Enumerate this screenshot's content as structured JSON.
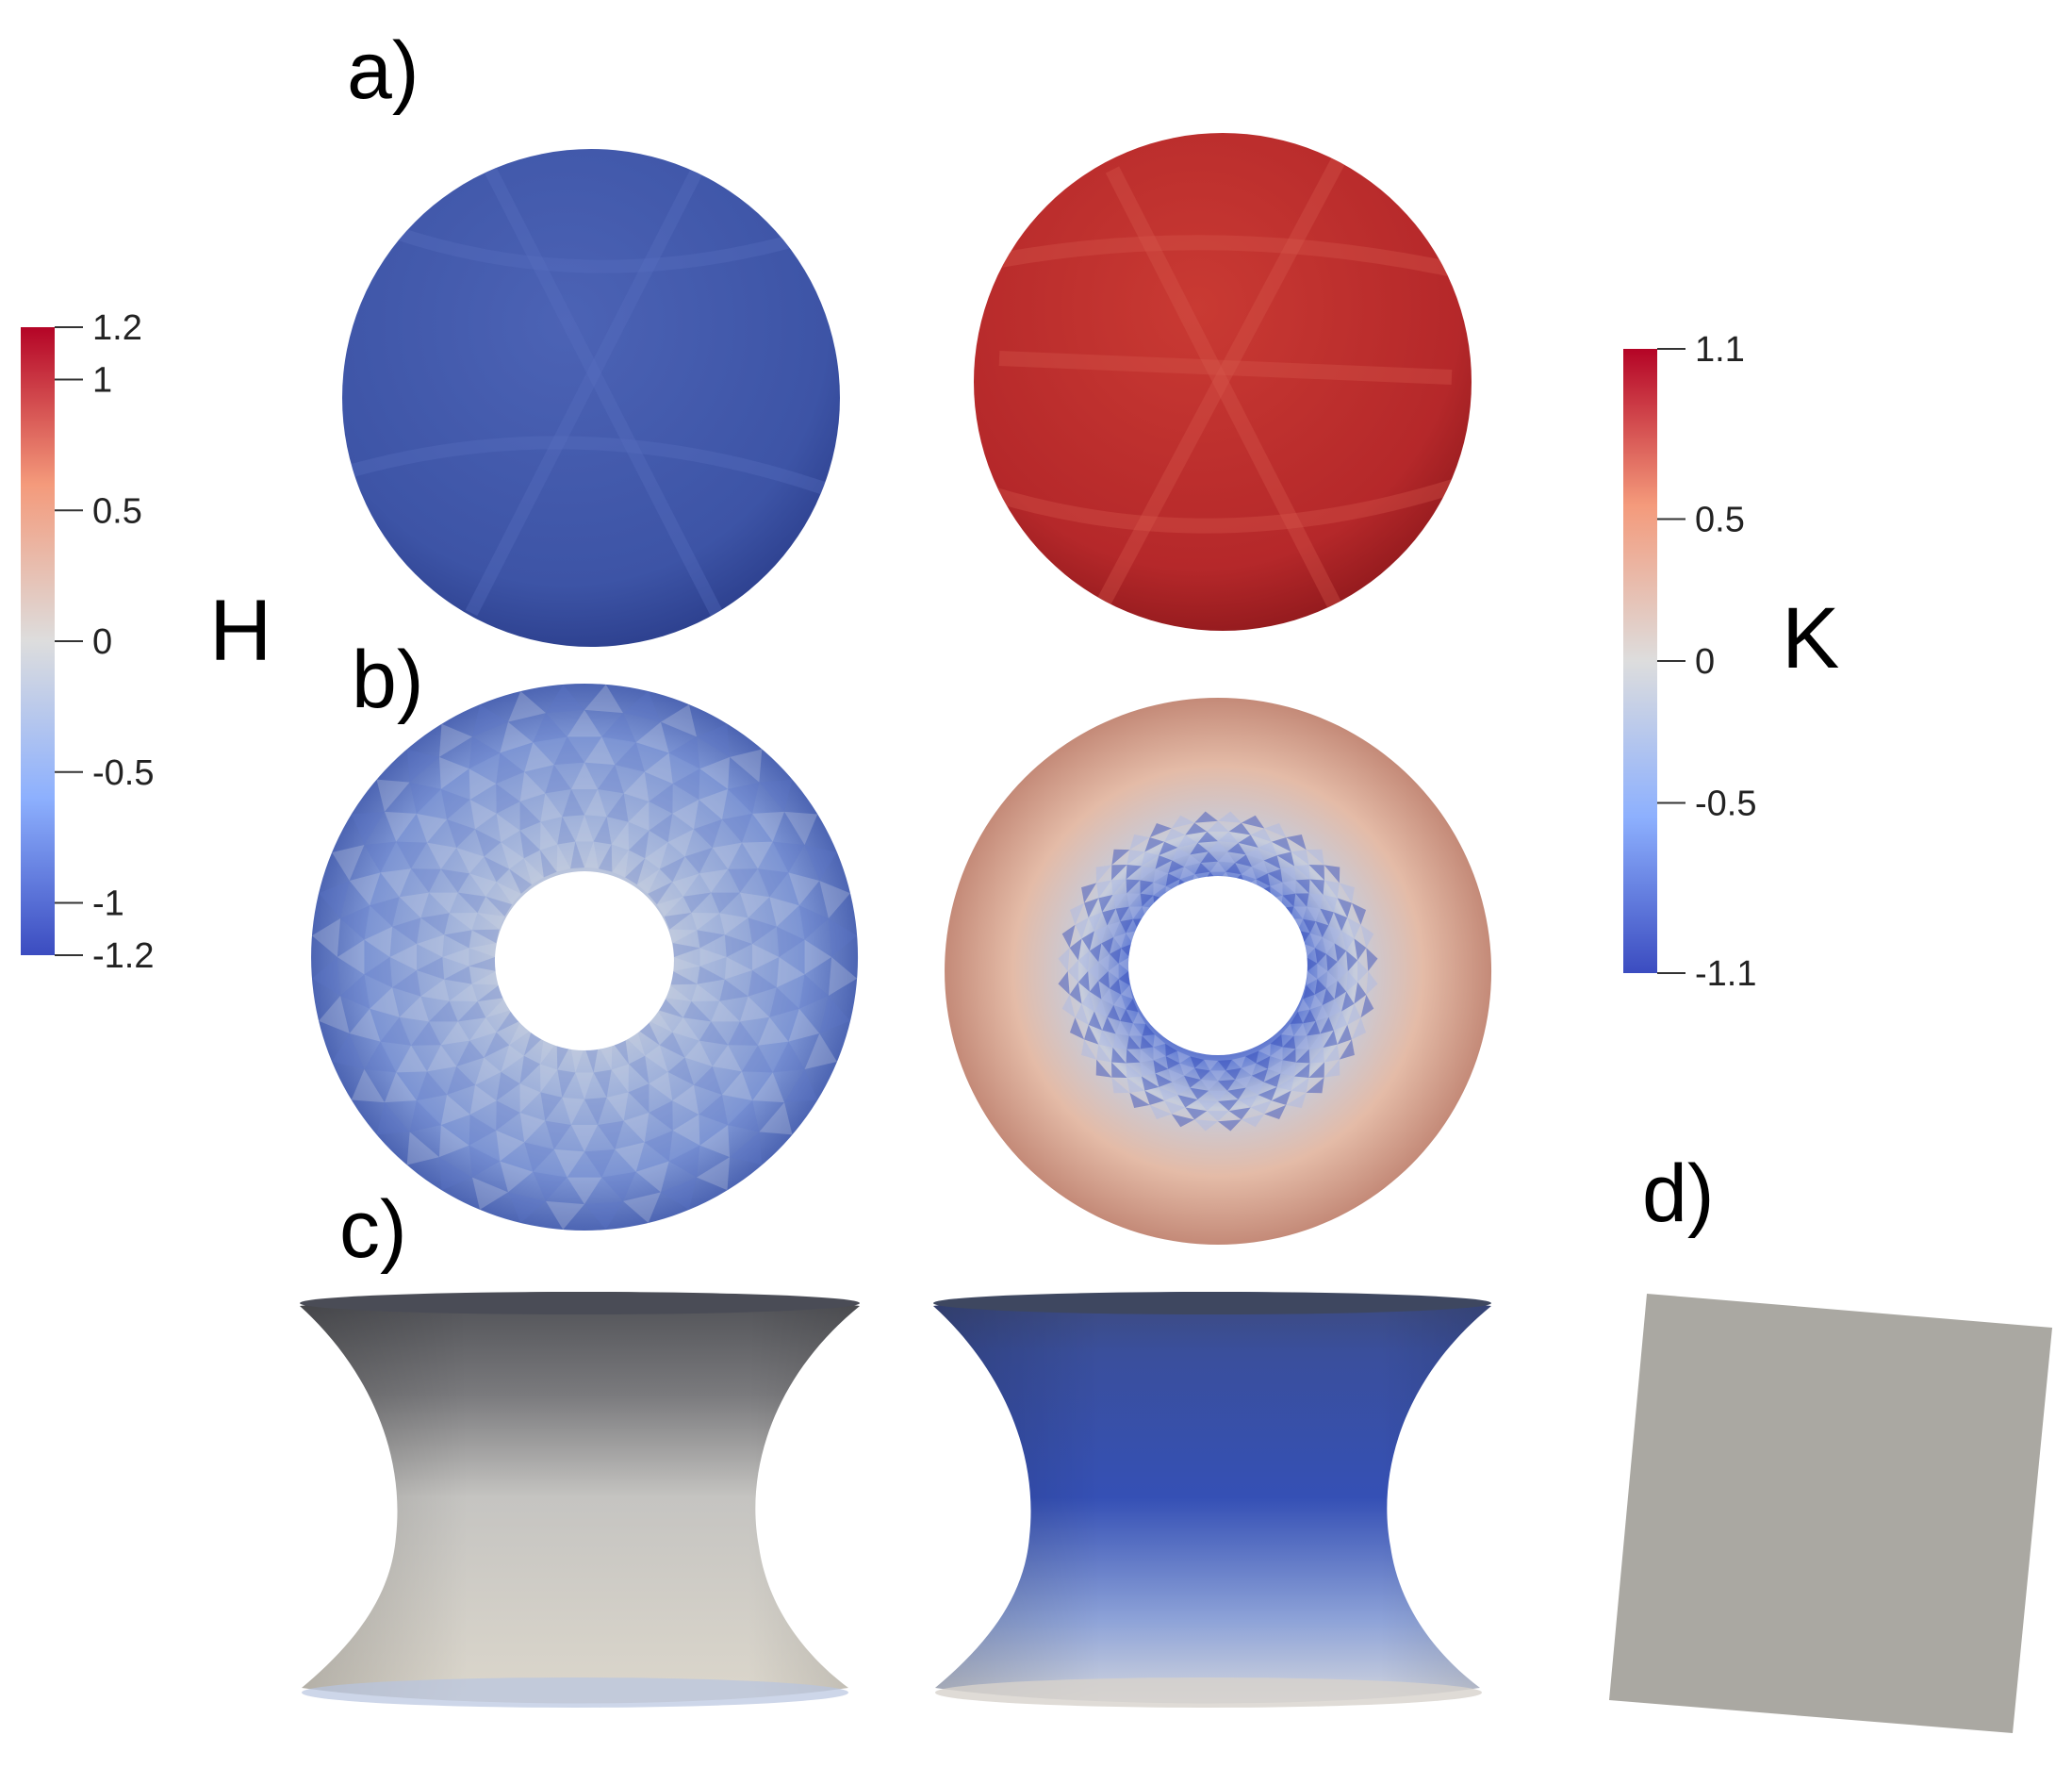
{
  "panels": {
    "a": "a)",
    "b": "b)",
    "c": "c)",
    "d": "d)"
  },
  "colorbar_H": {
    "name": "H",
    "ticks": [
      "1.2",
      "1",
      "0.5",
      "0",
      "-0.5",
      "-1",
      "-1.2"
    ],
    "tick_values": [
      1.2,
      1,
      0.5,
      0,
      -0.5,
      -1,
      -1.2
    ],
    "range": [
      -1.2,
      1.2
    ],
    "colormap": [
      "#3b4cc0",
      "#8db0fe",
      "#dddddd",
      "#f49a7b",
      "#b40426"
    ]
  },
  "colorbar_K": {
    "name": "K",
    "ticks": [
      "1.1",
      "0.5",
      "0",
      "-0.5",
      "-1.1"
    ],
    "tick_values": [
      1.1,
      0.5,
      0,
      -0.5,
      -1.1
    ],
    "range": [
      -1.1,
      1.1
    ],
    "colormap": [
      "#3b4cc0",
      "#8db0fe",
      "#dddddd",
      "#f49a7b",
      "#b40426"
    ]
  },
  "colors": {
    "sphere_H": "#3f56a8",
    "sphere_K": "#b8282a",
    "torus_H": "#7e97d6",
    "torus_K_outer": "#e2b39f",
    "torus_K_inner": "#3b4cc0",
    "catenoid_H_top": "#5a5a5e",
    "catenoid_H_bottom": "#d8d5cf",
    "catenoid_K_mid": "#3f58b0",
    "plane": "#aaa8a2"
  }
}
